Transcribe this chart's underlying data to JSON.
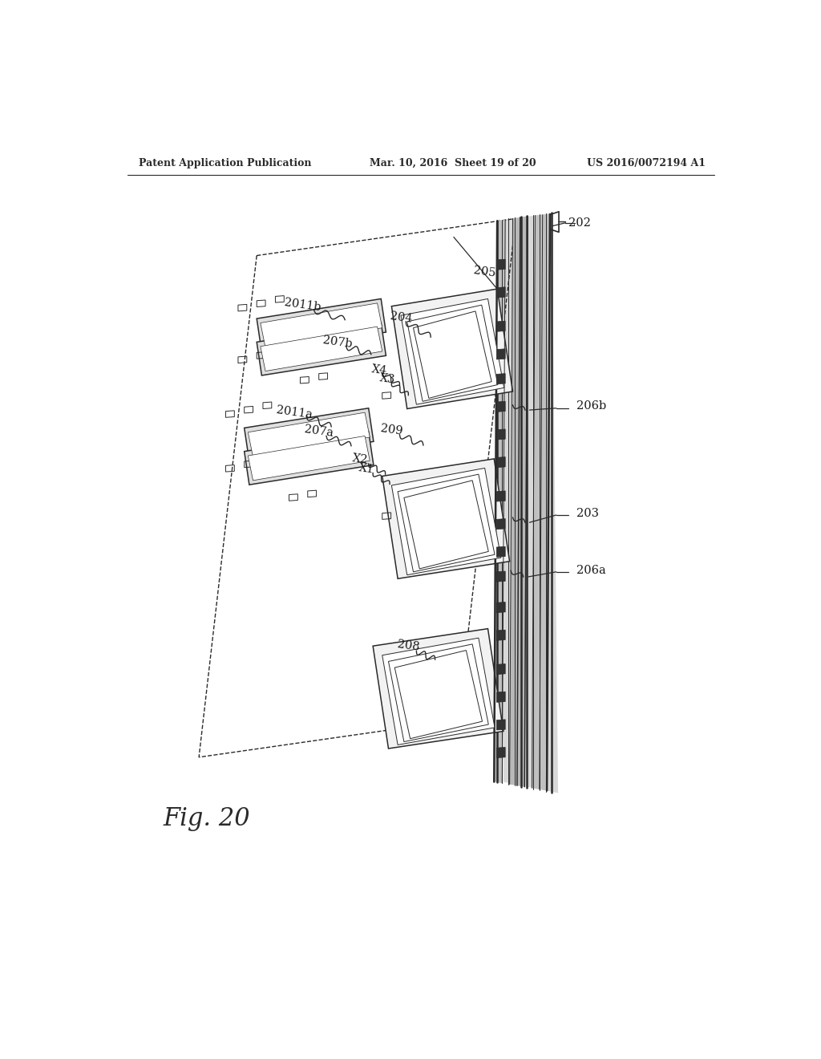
{
  "header_left": "Patent Application Publication",
  "header_mid": "Mar. 10, 2016  Sheet 19 of 20",
  "header_right": "US 2016/0072194 A1",
  "fig_label": "Fig. 20",
  "bg_color": "#ffffff",
  "line_color": "#2a2a2a",
  "fill_light": "#e8e8e8",
  "fill_dark": "#444444"
}
